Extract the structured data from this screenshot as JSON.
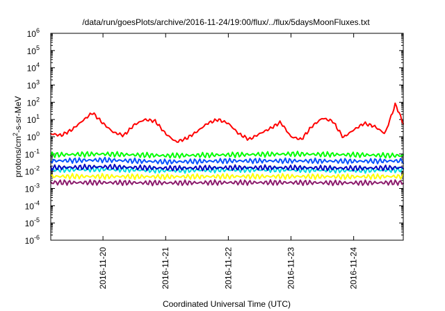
{
  "chart_data": {
    "type": "line",
    "title": "/data/run/goesPlots/archive/2016-11-24/19:00/flux/../flux/5daysMoonFluxes.txt",
    "xlabel": "Coordinated Universal Time (UTC)",
    "ylabel": {
      "base": "protons/cm",
      "sup": "2",
      "rest": "-s-sr-MeV"
    },
    "y_scale": "log",
    "ylim": [
      1e-06,
      1000000.0
    ],
    "xlim": [
      "2016-11-19T04:00",
      "2016-11-24T19:00"
    ],
    "y_tick_exponents": [
      -6,
      -5,
      -4,
      -3,
      -2,
      -1,
      0,
      1,
      2,
      3,
      4,
      5,
      6
    ],
    "y_tick_base": "10",
    "x_ticks": [
      "2016-11-20",
      "2016-11-21",
      "2016-11-22",
      "2016-11-23",
      "2016-11-24"
    ],
    "grid": true,
    "legend": "none",
    "series": [
      {
        "color": "#ff0000",
        "x": [
          "2016-11-19T04:00",
          "2016-11-19T08:00",
          "2016-11-19T12:00",
          "2016-11-19T16:00",
          "2016-11-19T20:00",
          "2016-11-20T00:00",
          "2016-11-20T04:00",
          "2016-11-20T08:00",
          "2016-11-20T12:00",
          "2016-11-20T16:00",
          "2016-11-20T20:00",
          "2016-11-21T00:00",
          "2016-11-21T04:00",
          "2016-11-21T08:00",
          "2016-11-21T12:00",
          "2016-11-21T16:00",
          "2016-11-21T20:00",
          "2016-11-22T00:00",
          "2016-11-22T04:00",
          "2016-11-22T08:00",
          "2016-11-22T12:00",
          "2016-11-22T16:00",
          "2016-11-22T20:00",
          "2016-11-23T00:00",
          "2016-11-23T04:00",
          "2016-11-23T08:00",
          "2016-11-23T12:00",
          "2016-11-23T16:00",
          "2016-11-23T20:00",
          "2016-11-24T00:00",
          "2016-11-24T04:00",
          "2016-11-24T08:00",
          "2016-11-24T12:00",
          "2016-11-24T16:00",
          "2016-11-24T19:00"
        ],
        "values": [
          1.5,
          1.2,
          2.5,
          8,
          25,
          6,
          1.8,
          1.2,
          5,
          10,
          8,
          1.5,
          0.5,
          0.8,
          2,
          6,
          10,
          6,
          1.5,
          0.7,
          1.5,
          3,
          7,
          1,
          0.7,
          4,
          12,
          8,
          0.9,
          2.5,
          6,
          4,
          1.5,
          80,
          6
        ]
      },
      {
        "color": "#00ff00",
        "x": [
          "2016-11-19T04:00",
          "2016-11-20T00:00",
          "2016-11-21T00:00",
          "2016-11-22T00:00",
          "2016-11-23T00:00",
          "2016-11-24T00:00",
          "2016-11-24T19:00"
        ],
        "values": [
          0.09,
          0.1,
          0.08,
          0.09,
          0.1,
          0.09,
          0.08
        ]
      },
      {
        "color": "#0050ff",
        "x": [
          "2016-11-19T04:00",
          "2016-11-20T00:00",
          "2016-11-21T00:00",
          "2016-11-22T00:00",
          "2016-11-23T00:00",
          "2016-11-24T00:00",
          "2016-11-24T19:00"
        ],
        "values": [
          0.04,
          0.045,
          0.035,
          0.04,
          0.04,
          0.038,
          0.04
        ]
      },
      {
        "color": "#00e0e0",
        "x": [
          "2016-11-19T04:00",
          "2016-11-20T00:00",
          "2016-11-21T00:00",
          "2016-11-22T00:00",
          "2016-11-23T00:00",
          "2016-11-24T00:00",
          "2016-11-24T19:00"
        ],
        "values": [
          0.012,
          0.013,
          0.011,
          0.012,
          0.012,
          0.011,
          0.012
        ]
      },
      {
        "color": "#0000c0",
        "x": [
          "2016-11-19T04:00",
          "2016-11-20T00:00",
          "2016-11-21T00:00",
          "2016-11-22T00:00",
          "2016-11-23T00:00",
          "2016-11-24T00:00",
          "2016-11-24T19:00"
        ],
        "values": [
          0.016,
          0.018,
          0.015,
          0.016,
          0.016,
          0.015,
          0.016
        ]
      },
      {
        "color": "#ffff00",
        "x": [
          "2016-11-19T04:00",
          "2016-11-20T00:00",
          "2016-11-21T00:00",
          "2016-11-22T00:00",
          "2016-11-23T00:00",
          "2016-11-24T00:00",
          "2016-11-24T19:00"
        ],
        "values": [
          0.005,
          0.005,
          0.0048,
          0.005,
          0.005,
          0.0048,
          0.005
        ]
      },
      {
        "color": "#8b1a6b",
        "x": [
          "2016-11-19T04:00",
          "2016-11-20T00:00",
          "2016-11-21T00:00",
          "2016-11-22T00:00",
          "2016-11-23T00:00",
          "2016-11-24T00:00",
          "2016-11-24T19:00"
        ],
        "values": [
          0.0022,
          0.0022,
          0.0021,
          0.0022,
          0.0022,
          0.0021,
          0.0022
        ]
      }
    ]
  }
}
